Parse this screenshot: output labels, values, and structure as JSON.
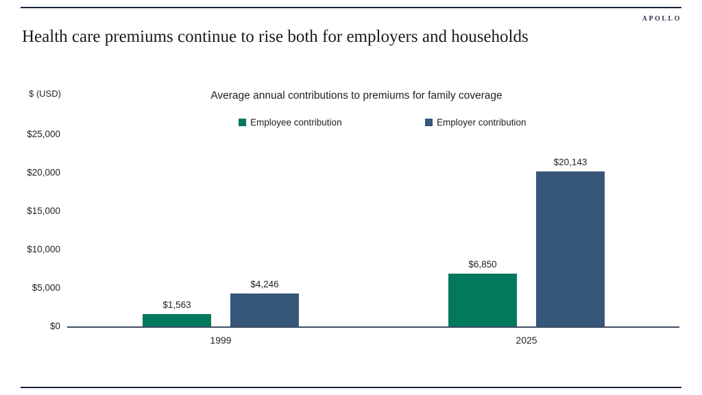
{
  "brand": {
    "logo_text": "APOLLO"
  },
  "page_title": "Health care premiums continue to rise both for employers and households",
  "chart_data": {
    "type": "bar",
    "title": "Average annual contributions to premiums for family coverage",
    "unit_label": "$ (USD)",
    "categories": [
      "1999",
      "2025"
    ],
    "series": [
      {
        "name": "Employee contribution",
        "color": "#02795d",
        "values": [
          1563,
          6850
        ],
        "labels": [
          "$1,563",
          "$6,850"
        ]
      },
      {
        "name": "Employer contribution",
        "color": "#36567a",
        "values": [
          4246,
          20143
        ],
        "labels": [
          "$4,246",
          "$20,143"
        ]
      }
    ],
    "yticks": [
      "$0",
      "$5,000",
      "$10,000",
      "$15,000",
      "$20,000",
      "$25,000"
    ],
    "ylim": [
      0,
      25000
    ],
    "grid": false,
    "legend_position": "top-center",
    "axis_color": "#3d4d61",
    "rule_color": "#16233a"
  }
}
